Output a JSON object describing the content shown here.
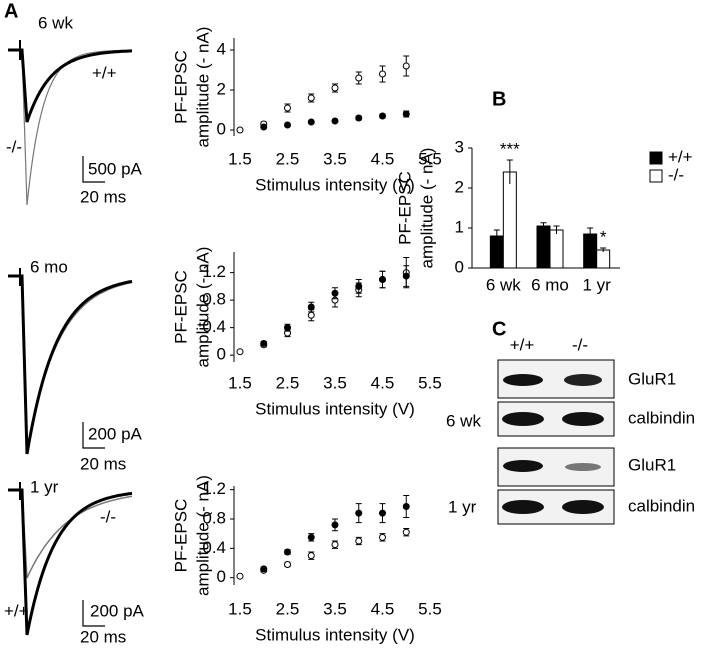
{
  "panel_labels": [
    "A",
    "B",
    "C"
  ],
  "traces": [
    {
      "age": "6 wk",
      "genotypes": [
        "+/+",
        "-/-"
      ],
      "scale_y": "500 pA",
      "scale_x": "20 ms"
    },
    {
      "age": "6 mo",
      "scale_y": "200 pA",
      "scale_x": "20 ms"
    },
    {
      "age": "1 yr",
      "genotypes": [
        "-/-",
        "+/+"
      ],
      "scale_y": "200 pA",
      "scale_x": "20 ms"
    }
  ],
  "blot": {
    "columns": [
      "+/+",
      "-/-"
    ],
    "rows": [
      {
        "age": "6 wk",
        "bands": [
          "GluR1",
          "calbindin"
        ]
      },
      {
        "age": "1 yr",
        "bands": [
          "GluR1",
          "calbindin"
        ]
      }
    ]
  },
  "chart_data": [
    {
      "type": "scatter",
      "x_label": "Stimulus intensity (V)",
      "y_label": [
        "PF-EPSC",
        "amplitude (- nA)"
      ],
      "x": [
        1.5,
        2,
        2.5,
        3,
        3.5,
        4,
        4.5,
        5
      ],
      "xlim": [
        1.5,
        5.5
      ],
      "xticks": [
        1.5,
        2.5,
        3.5,
        4.5,
        5.5
      ],
      "ylim": [
        -0.3,
        4.6
      ],
      "yticks": [
        0,
        2,
        4
      ],
      "series": [
        {
          "marker": "open",
          "color": "#000000",
          "values": [
            0,
            0.3,
            1.1,
            1.6,
            2.1,
            2.6,
            2.8,
            3.2
          ],
          "errors": [
            0,
            0.1,
            0.2,
            0.2,
            0.2,
            0.3,
            0.4,
            0.5
          ]
        },
        {
          "marker": "filled",
          "color": "#000000",
          "values": [
            null,
            0.15,
            0.25,
            0.4,
            0.45,
            0.6,
            0.7,
            0.8
          ],
          "errors": [
            null,
            0.05,
            0.05,
            0.05,
            0.05,
            0.1,
            0.1,
            0.15
          ]
        }
      ]
    },
    {
      "type": "scatter",
      "x_label": "Stimulus intensity (V)",
      "y_label": [
        "PF-EPSC",
        "amplitude (- nA)"
      ],
      "x": [
        1.5,
        2,
        2.5,
        3,
        3.5,
        4,
        4.5,
        5
      ],
      "xlim": [
        1.5,
        5.5
      ],
      "xticks": [
        1.5,
        2.5,
        3.5,
        4.5,
        5.5
      ],
      "ylim": [
        -0.1,
        1.5
      ],
      "yticks": [
        0,
        0.4,
        0.8,
        1.2
      ],
      "series": [
        {
          "marker": "open",
          "color": "#000000",
          "values": [
            0.05,
            0.15,
            0.32,
            0.58,
            0.8,
            0.95,
            1.1,
            1.2
          ],
          "errors": [
            0.02,
            0.03,
            0.05,
            0.08,
            0.1,
            0.1,
            0.12,
            0.22
          ]
        },
        {
          "marker": "filled",
          "color": "#000000",
          "values": [
            null,
            0.17,
            0.4,
            0.7,
            0.9,
            1.0,
            1.1,
            1.15
          ],
          "errors": [
            null,
            0.03,
            0.05,
            0.07,
            0.08,
            0.1,
            0.12,
            0.15
          ]
        }
      ]
    },
    {
      "type": "scatter",
      "x_label": "Stimulus intensity (V)",
      "y_label": [
        "PF-EPSC",
        "amplitude (- nA)"
      ],
      "x": [
        1.5,
        2,
        2.5,
        3,
        3.5,
        4,
        4.5,
        5
      ],
      "xlim": [
        1.5,
        5.5
      ],
      "xticks": [
        1.5,
        2.5,
        3.5,
        4.5,
        5.5
      ],
      "ylim": [
        -0.1,
        1.25
      ],
      "yticks": [
        0,
        0.4,
        0.8,
        1.2
      ],
      "series": [
        {
          "marker": "open",
          "color": "#000000",
          "values": [
            0.02,
            0.1,
            0.18,
            0.3,
            0.45,
            0.5,
            0.55,
            0.62
          ],
          "errors": [
            0.01,
            0.02,
            0.03,
            0.05,
            0.05,
            0.05,
            0.05,
            0.05
          ]
        },
        {
          "marker": "filled",
          "color": "#000000",
          "values": [
            null,
            0.12,
            0.35,
            0.55,
            0.72,
            0.88,
            0.88,
            0.97
          ],
          "errors": [
            null,
            0.02,
            0.03,
            0.05,
            0.08,
            0.13,
            0.13,
            0.15
          ]
        }
      ]
    },
    {
      "type": "bar",
      "y_label": [
        "PF-EPSC",
        "amplitude (- nA)"
      ],
      "categories": [
        "6 wk",
        "6 mo",
        "1 yr"
      ],
      "ylim": [
        0,
        3
      ],
      "yticks": [
        0,
        1,
        2,
        3
      ],
      "annotations": [
        "***",
        "*"
      ],
      "series": [
        {
          "name": "+/+",
          "color": "#000000",
          "values": [
            0.8,
            1.05,
            0.85
          ],
          "errors": [
            0.15,
            0.08,
            0.15
          ]
        },
        {
          "name": "-/-",
          "color": "#ffffff",
          "values": [
            2.4,
            0.95,
            0.45
          ],
          "errors": [
            0.3,
            0.1,
            0.05
          ]
        }
      ]
    }
  ]
}
